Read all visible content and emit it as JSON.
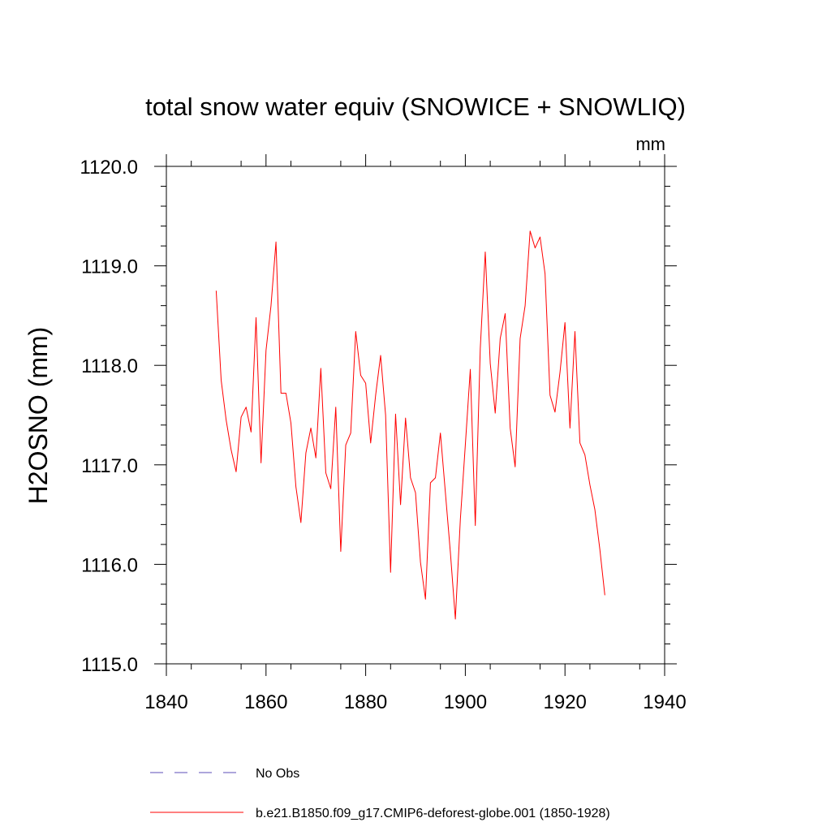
{
  "chart_data": {
    "type": "line",
    "title": "total snow water equiv (SNOWICE + SNOWLIQ)",
    "units": "mm",
    "xlabel": "",
    "ylabel": "H2OSNO  (mm)",
    "xlim": [
      1840,
      1940
    ],
    "ylim": [
      1115.0,
      1120.0
    ],
    "xticks": [
      1840,
      1860,
      1880,
      1900,
      1920,
      1940
    ],
    "yticks": [
      1115.0,
      1116.0,
      1117.0,
      1118.0,
      1119.0,
      1120.0
    ],
    "ytick_labels": [
      "1115.0",
      "1116.0",
      "1117.0",
      "1118.0",
      "1119.0",
      "1120.0"
    ],
    "legend": [
      {
        "label": "No Obs",
        "color": "#5b4db8",
        "style": "dashed"
      },
      {
        "label": "b.e21.B1850.f09_g17.CMIP6-deforest-globe.001 (1850-1928)",
        "color": "#ff0000",
        "style": "solid"
      }
    ],
    "series": [
      {
        "name": "b.e21.B1850.f09_g17.CMIP6-deforest-globe.001 (1850-1928)",
        "color": "#ff0000",
        "x": [
          1850,
          1851,
          1852,
          1853,
          1854,
          1855,
          1856,
          1857,
          1858,
          1859,
          1860,
          1861,
          1862,
          1863,
          1864,
          1865,
          1866,
          1867,
          1868,
          1869,
          1870,
          1871,
          1872,
          1873,
          1874,
          1875,
          1876,
          1877,
          1878,
          1879,
          1880,
          1881,
          1882,
          1883,
          1884,
          1885,
          1886,
          1887,
          1888,
          1889,
          1890,
          1891,
          1892,
          1893,
          1894,
          1895,
          1896,
          1897,
          1898,
          1899,
          1900,
          1901,
          1902,
          1903,
          1904,
          1905,
          1906,
          1907,
          1908,
          1909,
          1910,
          1911,
          1912,
          1913,
          1914,
          1915,
          1916,
          1917,
          1918,
          1919,
          1920,
          1921,
          1922,
          1923,
          1924,
          1925,
          1926,
          1927,
          1928
        ],
        "values": [
          1118.75,
          1117.85,
          1117.45,
          1117.15,
          1116.93,
          1117.48,
          1117.58,
          1117.33,
          1118.48,
          1117.02,
          1118.15,
          1118.6,
          1119.24,
          1117.72,
          1117.72,
          1117.42,
          1116.78,
          1116.42,
          1117.12,
          1117.37,
          1117.07,
          1117.97,
          1116.92,
          1116.76,
          1117.58,
          1116.13,
          1117.2,
          1117.32,
          1118.34,
          1117.9,
          1117.82,
          1117.22,
          1117.7,
          1118.1,
          1117.5,
          1115.92,
          1117.51,
          1116.6,
          1117.47,
          1116.87,
          1116.72,
          1116.02,
          1115.65,
          1116.82,
          1116.87,
          1117.32,
          1116.72,
          1116.12,
          1115.45,
          1116.45,
          1117.2,
          1117.96,
          1116.39,
          1118.17,
          1119.14,
          1118.02,
          1117.52,
          1118.27,
          1118.52,
          1117.37,
          1116.98,
          1118.27,
          1118.6,
          1119.35,
          1119.18,
          1119.29,
          1118.92,
          1117.7,
          1117.53,
          1117.93,
          1118.43,
          1117.37,
          1118.34,
          1117.22,
          1117.1,
          1116.8,
          1116.55,
          1116.15,
          1115.69
        ]
      }
    ]
  }
}
